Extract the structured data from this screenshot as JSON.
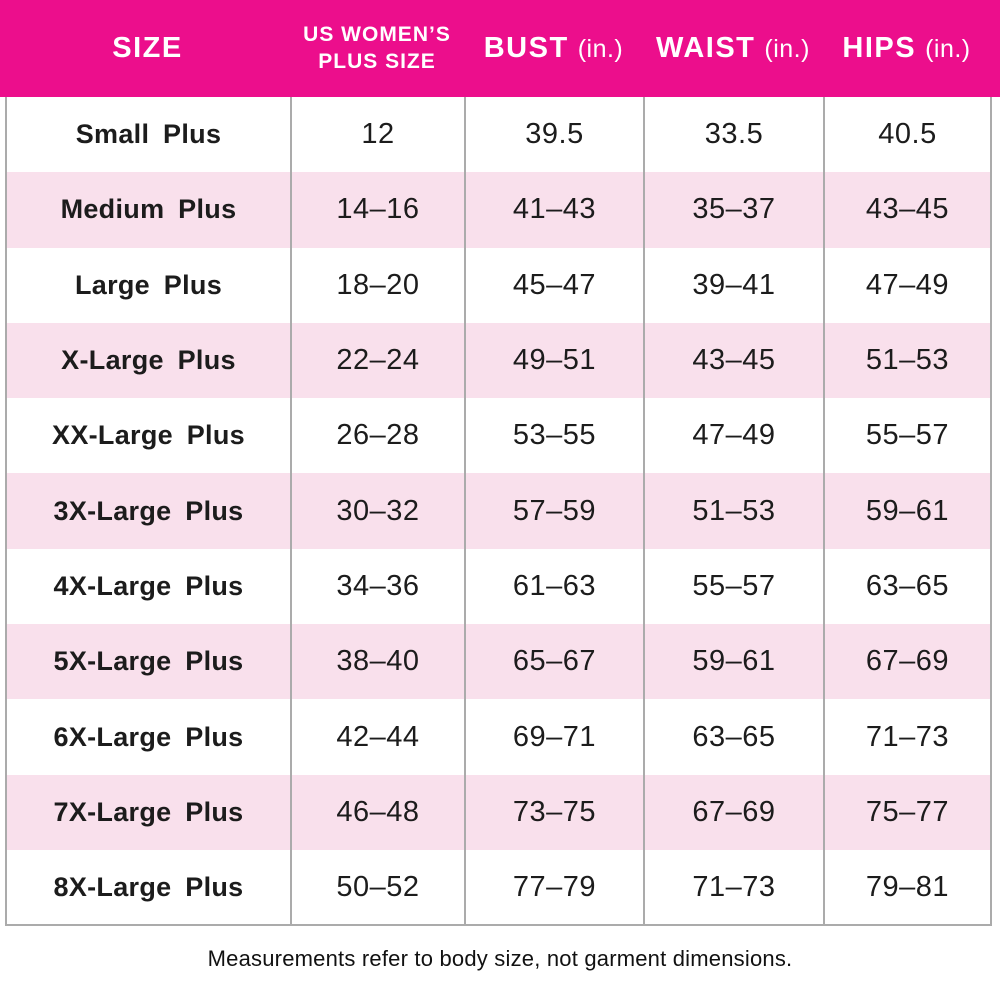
{
  "colors": {
    "header_bg": "#EC0E8C",
    "header_text": "#FFFFFF",
    "row_bg": "#FFFFFF",
    "row_alt_bg": "#F9E0EC",
    "grid_border": "#ABABAB",
    "body_text": "#1C1C1C"
  },
  "header": {
    "size": "SIZE",
    "plus_line1": "US WOMEN’S",
    "plus_line2": "PLUS SIZE",
    "bust": "BUST",
    "bust_unit": "(in.)",
    "waist": "WAIST",
    "waist_unit": "(in.)",
    "hips": "HIPS",
    "hips_unit": "(in.)"
  },
  "footnote": "Measurements refer to body size, not garment dimensions.",
  "chart_data": {
    "type": "table",
    "columns": [
      "SIZE",
      "US WOMEN’S PLUS SIZE",
      "BUST (in.)",
      "WAIST (in.)",
      "HIPS (in.)"
    ],
    "rows": [
      [
        "Small Plus",
        "12",
        "39.5",
        "33.5",
        "40.5"
      ],
      [
        "Medium Plus",
        "14–16",
        "41–43",
        "35–37",
        "43–45"
      ],
      [
        "Large Plus",
        "18–20",
        "45–47",
        "39–41",
        "47–49"
      ],
      [
        "X-Large Plus",
        "22–24",
        "49–51",
        "43–45",
        "51–53"
      ],
      [
        "XX-Large Plus",
        "26–28",
        "53–55",
        "47–49",
        "55–57"
      ],
      [
        "3X-Large Plus",
        "30–32",
        "57–59",
        "51–53",
        "59–61"
      ],
      [
        "4X-Large Plus",
        "34–36",
        "61–63",
        "55–57",
        "63–65"
      ],
      [
        "5X-Large Plus",
        "38–40",
        "65–67",
        "59–61",
        "67–69"
      ],
      [
        "6X-Large Plus",
        "42–44",
        "69–71",
        "63–65",
        "71–73"
      ],
      [
        "7X-Large Plus",
        "46–48",
        "73–75",
        "67–69",
        "75–77"
      ],
      [
        "8X-Large Plus",
        "50–52",
        "77–79",
        "71–73",
        "79–81"
      ]
    ]
  }
}
